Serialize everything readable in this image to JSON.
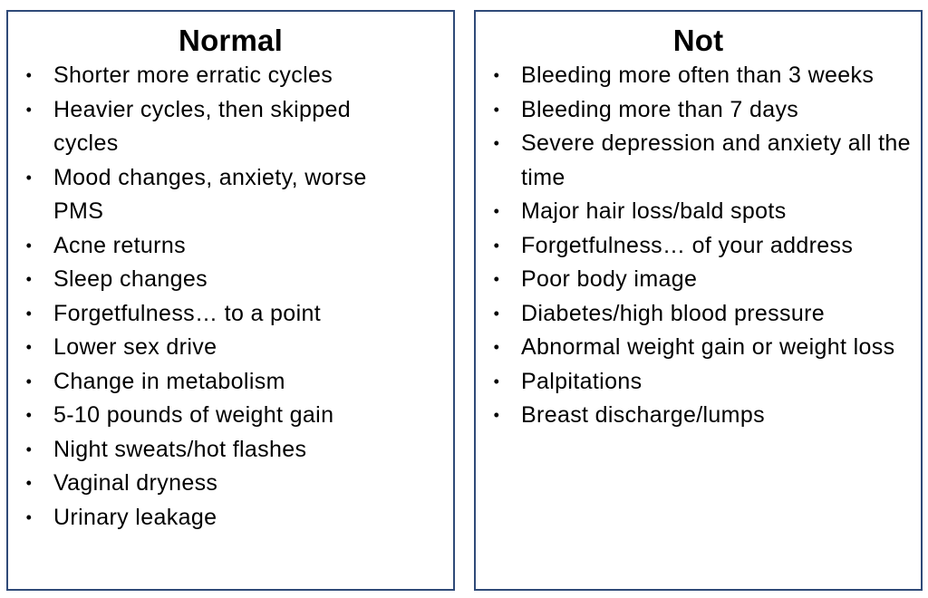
{
  "normal": {
    "title": "Normal",
    "items": [
      "Shorter more erratic cycles",
      "Heavier cycles, then skipped cycles",
      "Mood changes, anxiety, worse PMS",
      "Acne returns",
      "Sleep changes",
      "Forgetfulness… to a point",
      "Lower sex drive",
      "Change in metabolism",
      "5-10 pounds of weight gain",
      "Night sweats/hot flashes",
      "Vaginal dryness",
      "Urinary leakage"
    ]
  },
  "not": {
    "title": "Not",
    "items": [
      "Bleeding more often than 3 weeks",
      "Bleeding more than 7 days",
      "Severe depression and anxiety all the time",
      "Major hair loss/bald spots",
      "Forgetfulness… of your address",
      "Poor body image",
      "Diabetes/high blood pressure",
      "Abnormal weight gain or weight loss",
      "Palpitations",
      "Breast discharge/lumps"
    ]
  },
  "colors": {
    "border": "#2f4a78",
    "text": "#000000",
    "background": "#ffffff"
  }
}
